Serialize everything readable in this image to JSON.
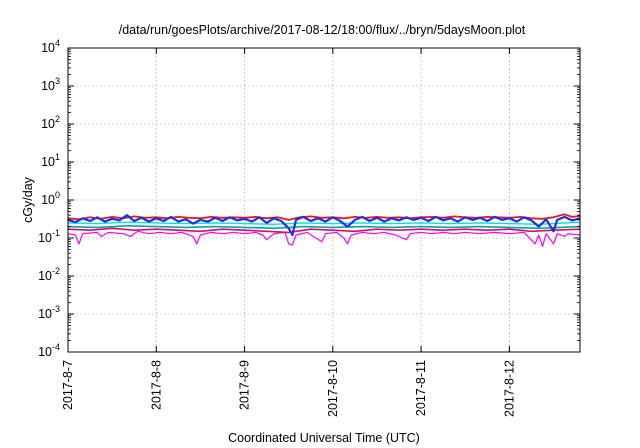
{
  "chart_data": {
    "type": "line",
    "title": "/data/run/goesPlots/archive/2017-08-12/18:00/flux/../bryn/5daysMoon.plot",
    "xlabel": "Coordinated Universal Time (UTC)",
    "ylabel": "cGy/day",
    "yscale": "log",
    "ylim": [
      0.0001,
      10000
    ],
    "xlim": [
      "2017-08-07",
      "2017-08-12 19:12"
    ],
    "grid": true,
    "x_ticks": [
      "2017-8-7",
      "2017-8-8",
      "2017-8-9",
      "2017-8-10",
      "2017-8-11",
      "2017-8-12"
    ],
    "y_ticks": [
      {
        "value": 0.0001,
        "base": "10",
        "exp": "-4"
      },
      {
        "value": 0.001,
        "base": "10",
        "exp": "-3"
      },
      {
        "value": 0.01,
        "base": "10",
        "exp": "-2"
      },
      {
        "value": 0.1,
        "base": "10",
        "exp": "-1"
      },
      {
        "value": 1,
        "base": "10",
        "exp": "0"
      },
      {
        "value": 10,
        "base": "10",
        "exp": "1"
      },
      {
        "value": 100,
        "base": "10",
        "exp": "2"
      },
      {
        "value": 1000,
        "base": "10",
        "exp": "3"
      },
      {
        "value": 10000,
        "base": "10",
        "exp": "4"
      }
    ],
    "series": [
      {
        "color": "#ff00ff",
        "width": 1.2,
        "values": [
          [
            "2017-08-07 00:00",
            0.13
          ],
          [
            "2017-08-07 02:00",
            0.12
          ],
          [
            "2017-08-07 03:00",
            0.07
          ],
          [
            "2017-08-07 04:00",
            0.13
          ],
          [
            "2017-08-07 08:00",
            0.14
          ],
          [
            "2017-08-07 09:00",
            0.11
          ],
          [
            "2017-08-07 11:00",
            0.14
          ],
          [
            "2017-08-07 15:00",
            0.13
          ],
          [
            "2017-08-07 17:00",
            0.11
          ],
          [
            "2017-08-07 19:00",
            0.15
          ],
          [
            "2017-08-07 22:00",
            0.13
          ],
          [
            "2017-08-08 01:00",
            0.14
          ],
          [
            "2017-08-08 04:00",
            0.13
          ],
          [
            "2017-08-08 07:00",
            0.14
          ],
          [
            "2017-08-08 10:00",
            0.11
          ],
          [
            "2017-08-08 11:00",
            0.07
          ],
          [
            "2017-08-08 12:00",
            0.12
          ],
          [
            "2017-08-08 15:00",
            0.14
          ],
          [
            "2017-08-08 18:00",
            0.13
          ],
          [
            "2017-08-08 21:00",
            0.14
          ],
          [
            "2017-08-09 00:00",
            0.13
          ],
          [
            "2017-08-09 03:00",
            0.14
          ],
          [
            "2017-08-09 05:00",
            0.12
          ],
          [
            "2017-08-09 06:00",
            0.09
          ],
          [
            "2017-08-09 08:00",
            0.13
          ],
          [
            "2017-08-09 11:00",
            0.14
          ],
          [
            "2017-08-09 12:00",
            0.07
          ],
          [
            "2017-08-09 13:00",
            0.065
          ],
          [
            "2017-08-09 14:00",
            0.12
          ],
          [
            "2017-08-09 17:00",
            0.14
          ],
          [
            "2017-08-09 21:00",
            0.08
          ],
          [
            "2017-08-09 22:00",
            0.13
          ],
          [
            "2017-08-10 01:00",
            0.14
          ],
          [
            "2017-08-10 03:00",
            0.1
          ],
          [
            "2017-08-10 04:00",
            0.07
          ],
          [
            "2017-08-10 05:00",
            0.12
          ],
          [
            "2017-08-10 08:00",
            0.14
          ],
          [
            "2017-08-10 11:00",
            0.13
          ],
          [
            "2017-08-10 14:00",
            0.14
          ],
          [
            "2017-08-10 17:00",
            0.12
          ],
          [
            "2017-08-10 20:00",
            0.09
          ],
          [
            "2017-08-10 21:00",
            0.13
          ],
          [
            "2017-08-11 00:00",
            0.14
          ],
          [
            "2017-08-11 03:00",
            0.13
          ],
          [
            "2017-08-11 06:00",
            0.14
          ],
          [
            "2017-08-11 09:00",
            0.13
          ],
          [
            "2017-08-11 12:00",
            0.14
          ],
          [
            "2017-08-11 16:00",
            0.13
          ],
          [
            "2017-08-11 20:00",
            0.14
          ],
          [
            "2017-08-12 00:00",
            0.13
          ],
          [
            "2017-08-12 04:00",
            0.14
          ],
          [
            "2017-08-12 07:00",
            0.07
          ],
          [
            "2017-08-12 08:00",
            0.12
          ],
          [
            "2017-08-12 09:00",
            0.06
          ],
          [
            "2017-08-12 10:00",
            0.13
          ],
          [
            "2017-08-12 12:00",
            0.07
          ],
          [
            "2017-08-12 13:00",
            0.13
          ],
          [
            "2017-08-12 15:00",
            0.11
          ],
          [
            "2017-08-12 16:00",
            0.13
          ],
          [
            "2017-08-12 19:12",
            0.12
          ]
        ]
      },
      {
        "color": "#d01060",
        "width": 1.6,
        "values": [
          [
            "2017-08-07 00:00",
            0.17
          ],
          [
            "2017-08-07 06:00",
            0.16
          ],
          [
            "2017-08-07 12:00",
            0.18
          ],
          [
            "2017-08-07 18:00",
            0.16
          ],
          [
            "2017-08-08 00:00",
            0.17
          ],
          [
            "2017-08-08 06:00",
            0.16
          ],
          [
            "2017-08-08 12:00",
            0.15
          ],
          [
            "2017-08-08 18:00",
            0.17
          ],
          [
            "2017-08-09 00:00",
            0.16
          ],
          [
            "2017-08-09 06:00",
            0.15
          ],
          [
            "2017-08-09 12:00",
            0.14
          ],
          [
            "2017-08-09 18:00",
            0.17
          ],
          [
            "2017-08-10 00:00",
            0.16
          ],
          [
            "2017-08-10 06:00",
            0.15
          ],
          [
            "2017-08-10 12:00",
            0.17
          ],
          [
            "2017-08-10 18:00",
            0.16
          ],
          [
            "2017-08-11 00:00",
            0.17
          ],
          [
            "2017-08-11 06:00",
            0.16
          ],
          [
            "2017-08-11 12:00",
            0.17
          ],
          [
            "2017-08-11 18:00",
            0.16
          ],
          [
            "2017-08-12 00:00",
            0.17
          ],
          [
            "2017-08-12 06:00",
            0.15
          ],
          [
            "2017-08-12 12:00",
            0.16
          ],
          [
            "2017-08-12 19:12",
            0.17
          ]
        ]
      },
      {
        "color": "#00a6a6",
        "width": 1.6,
        "values": [
          [
            "2017-08-07 00:00",
            0.2
          ],
          [
            "2017-08-07 08:00",
            0.19
          ],
          [
            "2017-08-07 16:00",
            0.21
          ],
          [
            "2017-08-08 00:00",
            0.2
          ],
          [
            "2017-08-08 08:00",
            0.19
          ],
          [
            "2017-08-08 16:00",
            0.2
          ],
          [
            "2017-08-09 00:00",
            0.19
          ],
          [
            "2017-08-09 08:00",
            0.18
          ],
          [
            "2017-08-09 16:00",
            0.2
          ],
          [
            "2017-08-10 00:00",
            0.19
          ],
          [
            "2017-08-10 08:00",
            0.2
          ],
          [
            "2017-08-10 16:00",
            0.19
          ],
          [
            "2017-08-11 00:00",
            0.2
          ],
          [
            "2017-08-11 08:00",
            0.19
          ],
          [
            "2017-08-11 16:00",
            0.2
          ],
          [
            "2017-08-12 00:00",
            0.19
          ],
          [
            "2017-08-12 08:00",
            0.18
          ],
          [
            "2017-08-12 19:12",
            0.2
          ]
        ]
      },
      {
        "color": "#00e0e0",
        "width": 1.4,
        "values": [
          [
            "2017-08-07 00:00",
            0.25
          ],
          [
            "2017-08-07 08:00",
            0.24
          ],
          [
            "2017-08-07 16:00",
            0.26
          ],
          [
            "2017-08-08 00:00",
            0.25
          ],
          [
            "2017-08-08 08:00",
            0.24
          ],
          [
            "2017-08-08 16:00",
            0.25
          ],
          [
            "2017-08-09 00:00",
            0.24
          ],
          [
            "2017-08-09 08:00",
            0.23
          ],
          [
            "2017-08-09 16:00",
            0.25
          ],
          [
            "2017-08-10 00:00",
            0.24
          ],
          [
            "2017-08-10 08:00",
            0.25
          ],
          [
            "2017-08-10 16:00",
            0.24
          ],
          [
            "2017-08-11 00:00",
            0.25
          ],
          [
            "2017-08-11 08:00",
            0.24
          ],
          [
            "2017-08-11 16:00",
            0.25
          ],
          [
            "2017-08-12 00:00",
            0.24
          ],
          [
            "2017-08-12 08:00",
            0.23
          ],
          [
            "2017-08-12 19:12",
            0.26
          ]
        ]
      },
      {
        "color": "#e81818",
        "width": 1.8,
        "values": [
          [
            "2017-08-07 00:00",
            0.33
          ],
          [
            "2017-08-07 03:00",
            0.31
          ],
          [
            "2017-08-07 06:00",
            0.35
          ],
          [
            "2017-08-07 09:00",
            0.32
          ],
          [
            "2017-08-07 12:00",
            0.36
          ],
          [
            "2017-08-07 15:00",
            0.33
          ],
          [
            "2017-08-07 18:00",
            0.37
          ],
          [
            "2017-08-07 21:00",
            0.34
          ],
          [
            "2017-08-08 00:00",
            0.35
          ],
          [
            "2017-08-08 03:00",
            0.33
          ],
          [
            "2017-08-08 06:00",
            0.36
          ],
          [
            "2017-08-08 09:00",
            0.34
          ],
          [
            "2017-08-08 12:00",
            0.33
          ],
          [
            "2017-08-08 15:00",
            0.36
          ],
          [
            "2017-08-08 18:00",
            0.34
          ],
          [
            "2017-08-08 21:00",
            0.35
          ],
          [
            "2017-08-09 00:00",
            0.34
          ],
          [
            "2017-08-09 03:00",
            0.36
          ],
          [
            "2017-08-09 06:00",
            0.33
          ],
          [
            "2017-08-09 09:00",
            0.35
          ],
          [
            "2017-08-09 12:00",
            0.3
          ],
          [
            "2017-08-09 15:00",
            0.35
          ],
          [
            "2017-08-09 18:00",
            0.37
          ],
          [
            "2017-08-09 21:00",
            0.34
          ],
          [
            "2017-08-10 00:00",
            0.35
          ],
          [
            "2017-08-10 03:00",
            0.33
          ],
          [
            "2017-08-10 06:00",
            0.36
          ],
          [
            "2017-08-10 09:00",
            0.34
          ],
          [
            "2017-08-10 12:00",
            0.36
          ],
          [
            "2017-08-10 15:00",
            0.34
          ],
          [
            "2017-08-10 18:00",
            0.35
          ],
          [
            "2017-08-10 21:00",
            0.33
          ],
          [
            "2017-08-11 00:00",
            0.35
          ],
          [
            "2017-08-11 03:00",
            0.36
          ],
          [
            "2017-08-11 06:00",
            0.34
          ],
          [
            "2017-08-11 09:00",
            0.37
          ],
          [
            "2017-08-11 12:00",
            0.35
          ],
          [
            "2017-08-11 15:00",
            0.34
          ],
          [
            "2017-08-11 18:00",
            0.36
          ],
          [
            "2017-08-11 21:00",
            0.35
          ],
          [
            "2017-08-12 00:00",
            0.34
          ],
          [
            "2017-08-12 03:00",
            0.36
          ],
          [
            "2017-08-12 06:00",
            0.33
          ],
          [
            "2017-08-12 09:00",
            0.32
          ],
          [
            "2017-08-12 12:00",
            0.35
          ],
          [
            "2017-08-12 15:00",
            0.42
          ],
          [
            "2017-08-12 17:00",
            0.36
          ],
          [
            "2017-08-12 19:12",
            0.38
          ]
        ]
      },
      {
        "color": "#2030e0",
        "width": 2.2,
        "values": [
          [
            "2017-08-07 00:00",
            0.3
          ],
          [
            "2017-08-07 02:00",
            0.26
          ],
          [
            "2017-08-07 04:00",
            0.33
          ],
          [
            "2017-08-07 06:00",
            0.28
          ],
          [
            "2017-08-07 08:00",
            0.35
          ],
          [
            "2017-08-07 10:00",
            0.27
          ],
          [
            "2017-08-07 12:00",
            0.32
          ],
          [
            "2017-08-07 14:00",
            0.29
          ],
          [
            "2017-08-07 16:00",
            0.4
          ],
          [
            "2017-08-07 18:00",
            0.28
          ],
          [
            "2017-08-07 20:00",
            0.34
          ],
          [
            "2017-08-07 22:00",
            0.27
          ],
          [
            "2017-08-08 00:00",
            0.33
          ],
          [
            "2017-08-08 02:00",
            0.28
          ],
          [
            "2017-08-08 04:00",
            0.36
          ],
          [
            "2017-08-08 06:00",
            0.27
          ],
          [
            "2017-08-08 08:00",
            0.31
          ],
          [
            "2017-08-08 10:00",
            0.24
          ],
          [
            "2017-08-08 12:00",
            0.3
          ],
          [
            "2017-08-08 14:00",
            0.27
          ],
          [
            "2017-08-08 16:00",
            0.34
          ],
          [
            "2017-08-08 18:00",
            0.28
          ],
          [
            "2017-08-08 20:00",
            0.35
          ],
          [
            "2017-08-08 22:00",
            0.29
          ],
          [
            "2017-08-09 00:00",
            0.32
          ],
          [
            "2017-08-09 02:00",
            0.27
          ],
          [
            "2017-08-09 04:00",
            0.35
          ],
          [
            "2017-08-09 06:00",
            0.25
          ],
          [
            "2017-08-09 08:00",
            0.33
          ],
          [
            "2017-08-09 10:00",
            0.28
          ],
          [
            "2017-08-09 12:00",
            0.18
          ],
          [
            "2017-08-09 13:00",
            0.12
          ],
          [
            "2017-08-09 14:00",
            0.3
          ],
          [
            "2017-08-09 16:00",
            0.36
          ],
          [
            "2017-08-09 18:00",
            0.28
          ],
          [
            "2017-08-09 20:00",
            0.33
          ],
          [
            "2017-08-09 22:00",
            0.27
          ],
          [
            "2017-08-10 00:00",
            0.35
          ],
          [
            "2017-08-10 02:00",
            0.28
          ],
          [
            "2017-08-10 04:00",
            0.2
          ],
          [
            "2017-08-10 06:00",
            0.3
          ],
          [
            "2017-08-10 08:00",
            0.36
          ],
          [
            "2017-08-10 10:00",
            0.28
          ],
          [
            "2017-08-10 12:00",
            0.34
          ],
          [
            "2017-08-10 14:00",
            0.27
          ],
          [
            "2017-08-10 16:00",
            0.33
          ],
          [
            "2017-08-10 18:00",
            0.29
          ],
          [
            "2017-08-10 20:00",
            0.35
          ],
          [
            "2017-08-10 22:00",
            0.3
          ],
          [
            "2017-08-11 00:00",
            0.34
          ],
          [
            "2017-08-11 02:00",
            0.28
          ],
          [
            "2017-08-11 04:00",
            0.36
          ],
          [
            "2017-08-11 06:00",
            0.29
          ],
          [
            "2017-08-11 08:00",
            0.33
          ],
          [
            "2017-08-11 10:00",
            0.27
          ],
          [
            "2017-08-11 12:00",
            0.35
          ],
          [
            "2017-08-11 14:00",
            0.3
          ],
          [
            "2017-08-11 16:00",
            0.34
          ],
          [
            "2017-08-11 18:00",
            0.28
          ],
          [
            "2017-08-11 20:00",
            0.36
          ],
          [
            "2017-08-11 22:00",
            0.3
          ],
          [
            "2017-08-12 00:00",
            0.33
          ],
          [
            "2017-08-12 02:00",
            0.27
          ],
          [
            "2017-08-12 04:00",
            0.35
          ],
          [
            "2017-08-12 06:00",
            0.29
          ],
          [
            "2017-08-12 08:00",
            0.2
          ],
          [
            "2017-08-12 10:00",
            0.31
          ],
          [
            "2017-08-12 12:00",
            0.15
          ],
          [
            "2017-08-12 13:00",
            0.3
          ],
          [
            "2017-08-12 15:00",
            0.36
          ],
          [
            "2017-08-12 17:00",
            0.29
          ],
          [
            "2017-08-12 19:12",
            0.33
          ]
        ]
      }
    ]
  }
}
